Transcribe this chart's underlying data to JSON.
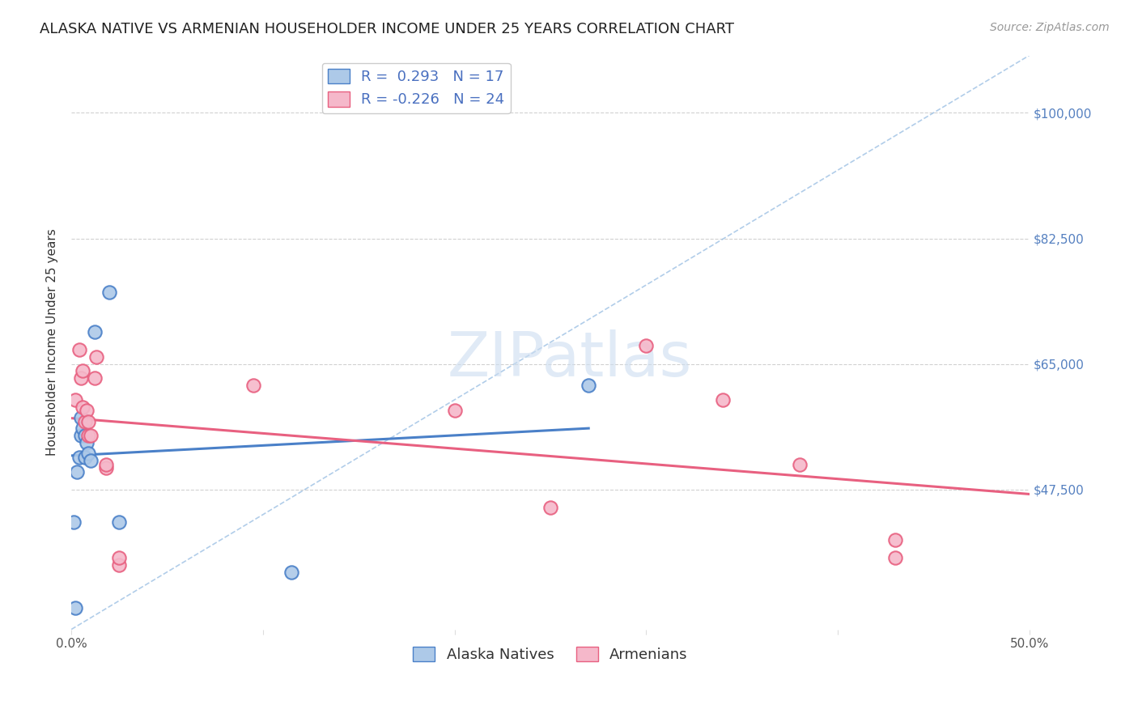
{
  "title": "ALASKA NATIVE VS ARMENIAN HOUSEHOLDER INCOME UNDER 25 YEARS CORRELATION CHART",
  "source_text": "Source: ZipAtlas.com",
  "ylabel": "Householder Income Under 25 years",
  "xlim": [
    0.0,
    0.5
  ],
  "ylim": [
    28000,
    108000
  ],
  "yticks": [
    47500,
    65000,
    82500,
    100000
  ],
  "ytick_labels": [
    "$47,500",
    "$65,000",
    "$82,500",
    "$100,000"
  ],
  "xticks": [
    0.0,
    0.1,
    0.2,
    0.3,
    0.4,
    0.5
  ],
  "alaska_color": "#adc9e8",
  "armenian_color": "#f5b8ca",
  "alaska_line_color": "#4a80c8",
  "armenian_line_color": "#e86080",
  "ref_line_color": "#90b8e0",
  "r_alaska": 0.293,
  "n_alaska": 17,
  "r_armenian": -0.226,
  "n_armenian": 24,
  "alaska_x": [
    0.001,
    0.002,
    0.003,
    0.004,
    0.005,
    0.005,
    0.006,
    0.007,
    0.007,
    0.008,
    0.009,
    0.01,
    0.012,
    0.02,
    0.025,
    0.115,
    0.27
  ],
  "alaska_y": [
    43000,
    31000,
    50000,
    52000,
    57500,
    55000,
    56000,
    55000,
    52000,
    54000,
    52500,
    51500,
    69500,
    75000,
    43000,
    36000,
    62000
  ],
  "armenian_x": [
    0.002,
    0.004,
    0.005,
    0.006,
    0.006,
    0.007,
    0.008,
    0.009,
    0.009,
    0.01,
    0.012,
    0.013,
    0.018,
    0.018,
    0.025,
    0.025,
    0.095,
    0.2,
    0.25,
    0.3,
    0.34,
    0.38,
    0.43,
    0.43
  ],
  "armenian_y": [
    60000,
    67000,
    63000,
    64000,
    59000,
    57000,
    58500,
    55000,
    57000,
    55000,
    63000,
    66000,
    50500,
    51000,
    37000,
    38000,
    62000,
    58500,
    45000,
    67500,
    60000,
    51000,
    38000,
    40500
  ],
  "watermark": "ZIPatlas",
  "watermark_color": "#ccddf0",
  "title_fontsize": 13,
  "axis_label_fontsize": 11,
  "tick_fontsize": 11,
  "legend_fontsize": 13,
  "source_fontsize": 10
}
